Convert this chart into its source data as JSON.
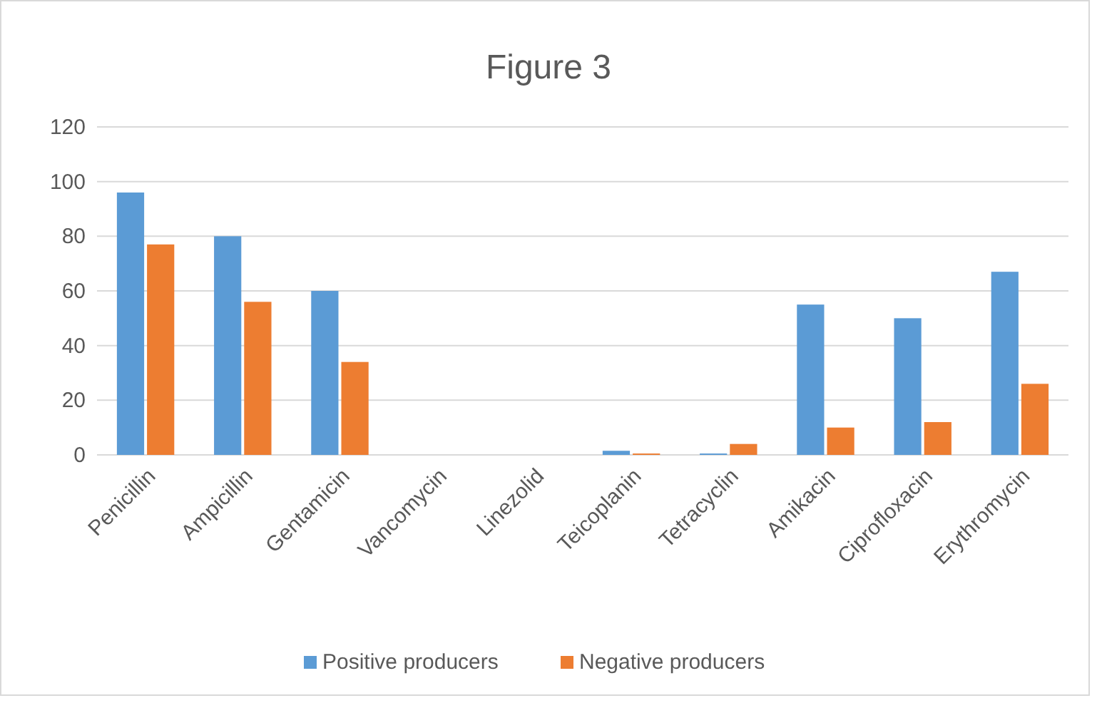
{
  "chart_data": {
    "type": "bar",
    "title": "Figure 3",
    "categories": [
      "Penicillin",
      "Ampicillin",
      "Gentamicin",
      "Vancomycin",
      "Linezolid",
      "Teicoplanin",
      "Tetracyclin",
      "Amikacin",
      "Ciprofloxacin",
      "Erythromycin"
    ],
    "series": [
      {
        "name": "Positive producers",
        "color": "#5b9bd5",
        "values": [
          96,
          80,
          60,
          0,
          0,
          1.5,
          0.5,
          55,
          50,
          67
        ]
      },
      {
        "name": "Negative producers",
        "color": "#ed7d31",
        "values": [
          77,
          56,
          34,
          0,
          0,
          0.5,
          4,
          10,
          12,
          26
        ]
      }
    ],
    "ylim": [
      0,
      120
    ],
    "yticks": [
      0,
      20,
      40,
      60,
      80,
      100,
      120
    ],
    "grid": "y",
    "legend": "bottom"
  }
}
